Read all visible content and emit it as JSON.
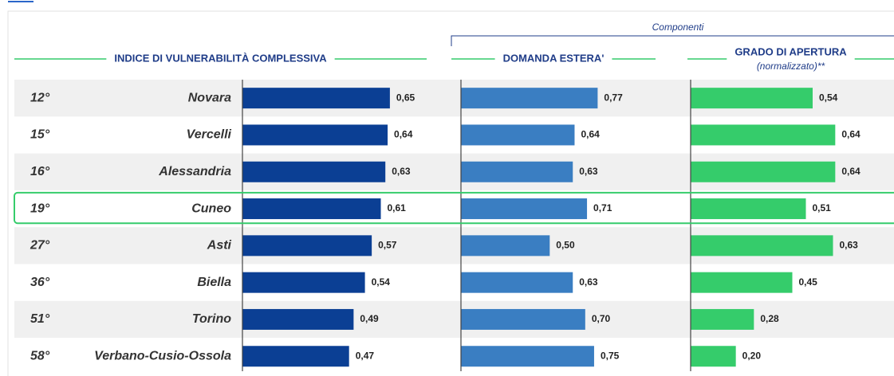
{
  "chart_data": {
    "type": "bar",
    "orientation": "horizontal",
    "group_label": "Componenti",
    "highlight": "Cuneo",
    "ranks": [
      "12°",
      "15°",
      "16°",
      "19°",
      "27°",
      "36°",
      "51°",
      "58°"
    ],
    "categories": [
      "Novara",
      "Vercelli",
      "Alessandria",
      "Cuneo",
      "Asti",
      "Biella",
      "Torino",
      "Verbano-Cusio-Ossola"
    ],
    "series": [
      {
        "name": "INDICE DI VULNERABILITÀ COMPLESSIVA",
        "color": "#0b3f94",
        "xlim": [
          0,
          0.9
        ],
        "values": [
          0.65,
          0.64,
          0.63,
          0.61,
          0.57,
          0.54,
          0.49,
          0.47
        ],
        "value_labels": [
          "0,65",
          "0,64",
          "0,63",
          "0,61",
          "0,57",
          "0,54",
          "0,49",
          "0,47"
        ]
      },
      {
        "name": "DOMANDA ESTERA'",
        "color": "#3a7ec2",
        "xlim": [
          0,
          1.15
        ],
        "values": [
          0.77,
          0.64,
          0.63,
          0.71,
          0.5,
          0.63,
          0.7,
          0.75
        ],
        "value_labels": [
          "0,77",
          "0,64",
          "0,63",
          "0,71",
          "0,50",
          "0,63",
          "0,70",
          "0,75"
        ]
      },
      {
        "name": "GRADO DI APERTURA",
        "note": "(normalizzato)**",
        "color": "#35cc6b",
        "xlim": [
          0,
          0.9
        ],
        "values": [
          0.54,
          0.64,
          0.64,
          0.51,
          0.63,
          0.45,
          0.28,
          0.2
        ],
        "value_labels": [
          "0,54",
          "0,64",
          "0,64",
          "0,51",
          "0,63",
          "0,45",
          "0,28",
          "0,20"
        ]
      }
    ]
  }
}
